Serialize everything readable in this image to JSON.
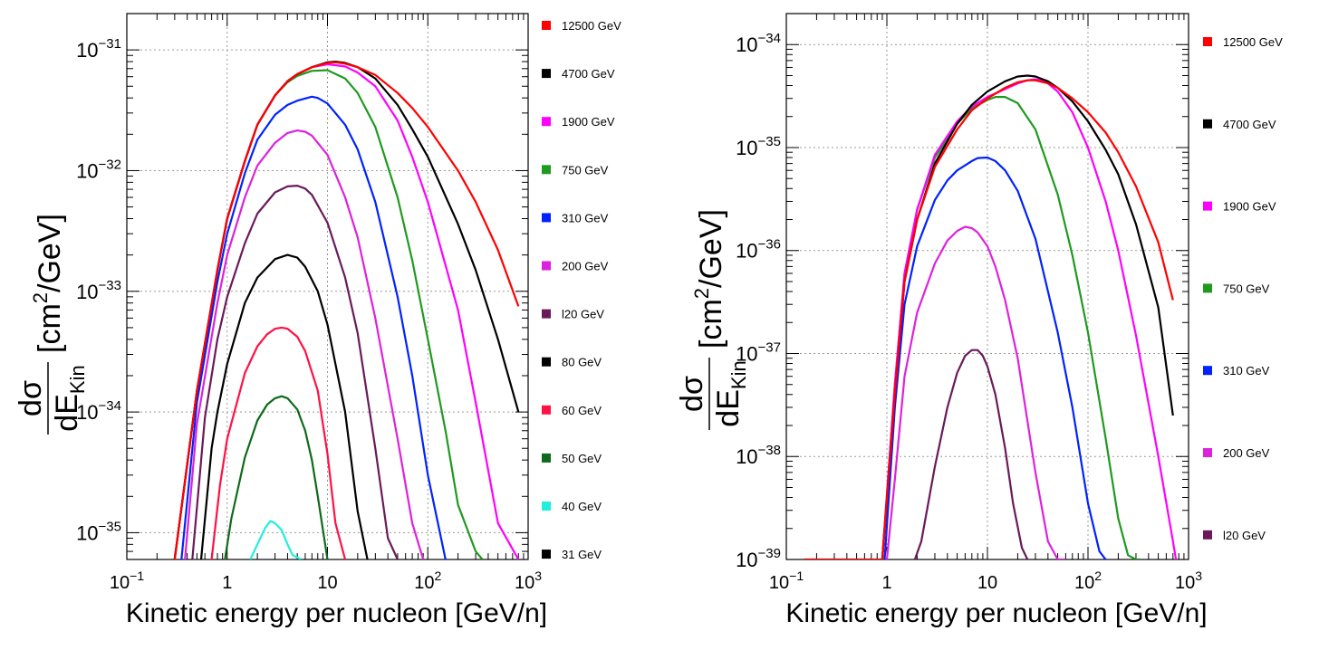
{
  "chart_data": [
    {
      "type": "line",
      "xlabel": "Kinetic energy per nucleon [GeV/n]",
      "ylabel": {
        "numerator": "dσ",
        "denominator": "dE",
        "denominator_sub": "Kin",
        "unit_prefix": "[cm",
        "unit_sup": "2",
        "unit_suffix": "/GeV]"
      },
      "x_scale": "log",
      "y_scale": "log",
      "xlim": [
        0.1,
        1000
      ],
      "ylim": [
        6e-36,
        2e-31
      ],
      "grid": true,
      "legend_placement": "right",
      "x_tick_labels": [
        {
          "base": "10",
          "exp": "−1",
          "value": 0.1
        },
        {
          "base": "1",
          "exp": "",
          "value": 1
        },
        {
          "base": "10",
          "exp": "",
          "value": 10
        },
        {
          "base": "10",
          "exp": "2",
          "value": 100
        },
        {
          "base": "10",
          "exp": "3",
          "value": 1000
        }
      ],
      "y_tick_labels": [
        {
          "base": "10",
          "exp": "−35",
          "value": 1e-35
        },
        {
          "base": "10",
          "exp": "−34",
          "value": 1e-34
        },
        {
          "base": "10",
          "exp": "−33",
          "value": 1e-33
        },
        {
          "base": "10",
          "exp": "−32",
          "value": 1e-32
        },
        {
          "base": "10",
          "exp": "−31",
          "value": 1e-31
        }
      ],
      "series": [
        {
          "name": "12500 GeV",
          "color": "#ff0000",
          "x": [
            0.3,
            0.5,
            0.8,
            1,
            1.5,
            2,
            3,
            4,
            5,
            7,
            10,
            12,
            15,
            20,
            30,
            50,
            70,
            100,
            200,
            300,
            500,
            800
          ],
          "y": [
            6e-36,
            1.5e-34,
            1.5e-33,
            4e-33,
            1.2e-32,
            2.4e-32,
            4.2e-32,
            5.5e-32,
            6.3e-32,
            7.2e-32,
            7.8e-32,
            7.9e-32,
            7.7e-32,
            7.2e-32,
            6.2e-32,
            4.4e-32,
            3.3e-32,
            2.3e-32,
            1e-32,
            5.5e-33,
            2.2e-33,
            7.5e-34
          ]
        },
        {
          "name": "4700 GeV",
          "color": "#000000",
          "x": [
            0.3,
            0.5,
            0.8,
            1,
            1.5,
            2,
            3,
            4,
            5,
            7,
            10,
            12,
            15,
            20,
            30,
            50,
            70,
            100,
            200,
            300,
            500,
            800
          ],
          "y": [
            6e-36,
            1.5e-34,
            1.5e-33,
            4e-33,
            1.2e-32,
            2.4e-32,
            4.2e-32,
            5.5e-32,
            6.3e-32,
            7.2e-32,
            7.9e-32,
            8e-32,
            7.8e-32,
            7.2e-32,
            5.8e-32,
            3.5e-32,
            2.2e-32,
            1.3e-32,
            3.6e-33,
            1.5e-33,
            4e-34,
            1e-34
          ]
        },
        {
          "name": "1900 GeV",
          "color": "#ff00ff",
          "x": [
            0.3,
            0.5,
            0.8,
            1,
            1.5,
            2,
            3,
            4,
            5,
            7,
            10,
            15,
            20,
            30,
            50,
            70,
            100,
            200,
            300,
            500,
            800
          ],
          "y": [
            6e-36,
            1.5e-34,
            1.5e-33,
            4e-33,
            1.2e-32,
            2.4e-32,
            4.2e-32,
            5.5e-32,
            6.3e-32,
            7.2e-32,
            7.6e-32,
            7.3e-32,
            6.5e-32,
            5e-32,
            2.6e-32,
            1.3e-32,
            5.5e-33,
            7e-34,
            1.2e-34,
            1.2e-35,
            6e-36
          ]
        },
        {
          "name": "750 GeV",
          "color": "#1f9a1f",
          "x": [
            0.3,
            0.5,
            0.8,
            1,
            1.5,
            2,
            3,
            4,
            5,
            7,
            10,
            15,
            20,
            30,
            50,
            70,
            100,
            150,
            200,
            300,
            350
          ],
          "y": [
            6e-36,
            1.5e-34,
            1.5e-33,
            4e-33,
            1.2e-32,
            2.4e-32,
            4.2e-32,
            5.4e-32,
            6.1e-32,
            6.7e-32,
            6.8e-32,
            5.8e-32,
            4.4e-32,
            2.3e-32,
            6e-33,
            1.8e-33,
            4e-34,
            7e-35,
            1.7e-35,
            7e-36,
            6e-36
          ]
        },
        {
          "name": "310 GeV",
          "color": "#0022ff",
          "x": [
            0.35,
            0.5,
            0.8,
            1,
            1.5,
            2,
            3,
            4,
            5,
            7,
            8,
            10,
            15,
            20,
            30,
            50,
            70,
            100,
            150
          ],
          "y": [
            6e-36,
            1.2e-34,
            1.2e-33,
            3e-33,
            9.5e-33,
            1.8e-32,
            2.9e-32,
            3.5e-32,
            3.8e-32,
            4.1e-32,
            4e-32,
            3.6e-32,
            2.4e-32,
            1.5e-32,
            5.5e-33,
            9e-34,
            2e-34,
            3e-35,
            6e-36
          ]
        },
        {
          "name": "200 GeV",
          "color": "#dd22dd",
          "x": [
            0.38,
            0.5,
            0.8,
            1,
            1.5,
            2,
            3,
            4,
            5,
            6,
            7,
            10,
            15,
            20,
            30,
            50,
            70,
            90
          ],
          "y": [
            6e-36,
            8e-35,
            8e-34,
            2e-33,
            6e-33,
            1.1e-32,
            1.7e-32,
            2.05e-32,
            2.15e-32,
            2.1e-32,
            1.95e-32,
            1.35e-32,
            6e-33,
            2.8e-33,
            6e-34,
            6e-35,
            1.2e-35,
            6e-36
          ]
        },
        {
          "name": "l20 GeV",
          "color": "#6a1a5a",
          "x": [
            0.45,
            0.6,
            0.8,
            1,
            1.5,
            2,
            3,
            4,
            5,
            6,
            7,
            10,
            15,
            20,
            30,
            40,
            50
          ],
          "y": [
            6e-36,
            9e-35,
            4e-34,
            9e-34,
            2.5e-33,
            4.4e-33,
            6.6e-33,
            7.4e-33,
            7.5e-33,
            7.1e-33,
            6.3e-33,
            3.7e-33,
            1.3e-33,
            4.5e-34,
            5e-35,
            9e-36,
            6e-36
          ]
        },
        {
          "name": "80 GeV",
          "color": "#000000",
          "x": [
            0.55,
            0.7,
            0.8,
            1,
            1.5,
            2,
            3,
            4,
            5,
            6,
            8,
            10,
            15,
            20,
            25
          ],
          "y": [
            6e-36,
            5e-35,
            1e-34,
            2.5e-34,
            8e-34,
            1.3e-33,
            1.85e-33,
            2e-33,
            1.9e-33,
            1.6e-33,
            1e-33,
            5.3e-34,
            1e-34,
            1.5e-35,
            6e-36
          ]
        },
        {
          "name": "60 GeV",
          "color": "#ff1144",
          "x": [
            0.7,
            0.85,
            1,
            1.5,
            2,
            2.5,
            3,
            3.5,
            4,
            5,
            6,
            8,
            10,
            12,
            15
          ],
          "y": [
            6e-36,
            2.5e-35,
            6e-35,
            2.1e-34,
            3.5e-34,
            4.4e-34,
            4.9e-34,
            5e-34,
            4.9e-34,
            4.2e-34,
            3.2e-34,
            1.5e-34,
            4.5e-35,
            1.2e-35,
            6e-36
          ]
        },
        {
          "name": "50 GeV",
          "color": "#0e6a1a",
          "x": [
            0.95,
            1.1,
            1.5,
            2,
            2.5,
            3,
            3.5,
            4,
            5,
            6,
            7,
            8,
            10
          ],
          "y": [
            6e-36,
            1.3e-35,
            4.2e-35,
            8.5e-35,
            1.15e-34,
            1.3e-34,
            1.35e-34,
            1.3e-34,
            1.05e-34,
            7e-35,
            4e-35,
            2e-35,
            6e-36
          ]
        },
        {
          "name": "40 GeV",
          "color": "#22eedd",
          "x": [
            1.7,
            2,
            2.4,
            2.7,
            3,
            3.5,
            4,
            4.5,
            5.5
          ],
          "y": [
            6e-36,
            8e-36,
            1.1e-35,
            1.25e-35,
            1.2e-35,
            1.05e-35,
            8e-36,
            6.5e-36,
            6e-36
          ]
        },
        {
          "name": "31 GeV",
          "color": "#000000",
          "x": [],
          "y": []
        }
      ]
    },
    {
      "type": "line",
      "xlabel": "Kinetic energy per nucleon [GeV/n]",
      "ylabel": {
        "numerator": "dσ",
        "denominator": "dE",
        "denominator_sub": "Kin",
        "unit_prefix": "[cm",
        "unit_sup": "2",
        "unit_suffix": "/GeV]"
      },
      "x_scale": "log",
      "y_scale": "log",
      "xlim": [
        0.1,
        1000
      ],
      "ylim": [
        1e-39,
        2e-34
      ],
      "grid": true,
      "legend_placement": "right",
      "x_tick_labels": [
        {
          "base": "10",
          "exp": "−1",
          "value": 0.1
        },
        {
          "base": "1",
          "exp": "",
          "value": 1
        },
        {
          "base": "10",
          "exp": "",
          "value": 10
        },
        {
          "base": "10",
          "exp": "2",
          "value": 100
        },
        {
          "base": "10",
          "exp": "3",
          "value": 1000
        }
      ],
      "y_tick_labels": [
        {
          "base": "10",
          "exp": "−39",
          "value": 1e-39
        },
        {
          "base": "10",
          "exp": "−38",
          "value": 1e-38
        },
        {
          "base": "10",
          "exp": "−37",
          "value": 1e-37
        },
        {
          "base": "10",
          "exp": "−36",
          "value": 1e-36
        },
        {
          "base": "10",
          "exp": "−35",
          "value": 1e-35
        },
        {
          "base": "10",
          "exp": "−34",
          "value": 1e-34
        }
      ],
      "series": [
        {
          "name": "12500 GeV",
          "color": "#ff0000",
          "x": [
            0.15,
            0.9,
            1.2,
            1.5,
            2,
            3,
            5,
            7,
            10,
            15,
            20,
            25,
            30,
            40,
            50,
            70,
            100,
            150,
            200,
            300,
            500,
            700
          ],
          "y": [
            1e-39,
            1e-39,
            4e-38,
            5e-37,
            2e-36,
            6.5e-36,
            1.5e-35,
            2.3e-35,
            3e-35,
            3.8e-35,
            4.3e-35,
            4.5e-35,
            4.5e-35,
            4.2e-35,
            3.8e-35,
            3e-35,
            2.2e-35,
            1.4e-35,
            9e-36,
            4.2e-36,
            1.2e-36,
            3.3e-37
          ]
        },
        {
          "name": "4700 GeV",
          "color": "#000000",
          "x": [
            0.9,
            1.2,
            1.5,
            2,
            3,
            5,
            7,
            10,
            15,
            20,
            25,
            30,
            40,
            50,
            70,
            100,
            150,
            200,
            300,
            500,
            700
          ],
          "y": [
            1e-39,
            4e-38,
            5e-37,
            2e-36,
            7e-36,
            1.7e-35,
            2.6e-35,
            3.5e-35,
            4.4e-35,
            4.9e-35,
            5e-35,
            4.9e-35,
            4.4e-35,
            3.8e-35,
            2.8e-35,
            1.8e-35,
            9.5e-36,
            5.5e-36,
            1.8e-36,
            2.8e-37,
            2.5e-38
          ]
        },
        {
          "name": "1900 GeV",
          "color": "#ff00ff",
          "x": [
            0.9,
            1.2,
            1.5,
            2,
            3,
            5,
            7,
            10,
            15,
            20,
            25,
            30,
            35,
            40,
            50,
            70,
            100,
            150,
            200,
            300,
            500,
            700,
            750
          ],
          "y": [
            1e-39,
            5e-38,
            6e-37,
            2.5e-36,
            8.5e-36,
            1.8e-35,
            2.5e-35,
            3.1e-35,
            3.7e-35,
            4.2e-35,
            4.5e-35,
            4.6e-35,
            4.5e-35,
            4.2e-35,
            3.5e-35,
            2.2e-35,
            1e-35,
            3e-36,
            1e-36,
            1.5e-37,
            1e-38,
            1.5e-39,
            1e-39
          ]
        },
        {
          "name": "750 GeV",
          "color": "#1f9a1f",
          "x": [
            0.9,
            1.2,
            1.5,
            2,
            3,
            5,
            7,
            10,
            12,
            15,
            20,
            30,
            50,
            70,
            100,
            150,
            200,
            250,
            300,
            330
          ],
          "y": [
            1e-39,
            5e-38,
            6e-37,
            2.5e-36,
            8e-36,
            1.7e-35,
            2.4e-35,
            2.9e-35,
            3.1e-35,
            3.1e-35,
            2.7e-35,
            1.5e-35,
            3.5e-36,
            9e-37,
            1.6e-37,
            1.5e-38,
            2.5e-39,
            1.1e-39,
            1e-39,
            1e-39
          ]
        },
        {
          "name": "310 GeV",
          "color": "#0022ff",
          "x": [
            0.95,
            1.2,
            1.5,
            2,
            3,
            4,
            5,
            7,
            8,
            10,
            12,
            15,
            20,
            30,
            50,
            70,
            100,
            130,
            150
          ],
          "y": [
            1e-39,
            3e-38,
            3e-37,
            1.1e-36,
            3.1e-36,
            4.8e-36,
            6e-36,
            7.4e-36,
            7.9e-36,
            8e-36,
            7.4e-36,
            6e-36,
            3.8e-36,
            1.3e-36,
            1.6e-37,
            3e-38,
            3.5e-39,
            1.2e-39,
            1e-39
          ]
        },
        {
          "name": "200 GeV",
          "color": "#dd22dd",
          "x": [
            1.0,
            1.2,
            1.5,
            2,
            3,
            4,
            5,
            6,
            7,
            8,
            10,
            12,
            15,
            20,
            30,
            40,
            50,
            55,
            60
          ],
          "y": [
            1e-39,
            6e-39,
            6e-38,
            2.5e-37,
            7.5e-37,
            1.25e-36,
            1.55e-36,
            1.7e-36,
            1.65e-36,
            1.5e-36,
            1.1e-36,
            7e-37,
            3.3e-37,
            9e-38,
            7e-39,
            1.5e-39,
            1e-39,
            1e-39,
            1e-39
          ]
        },
        {
          "name": "l20 GeV",
          "color": "#6a1a5a",
          "x": [
            1.9,
            2.2,
            3,
            4,
            5,
            6,
            7,
            8,
            9,
            10,
            12,
            15,
            18,
            22,
            25
          ],
          "y": [
            1e-39,
            1.5e-39,
            8e-39,
            3e-38,
            6.5e-38,
            9.5e-38,
            1.08e-37,
            1.08e-37,
            9.5e-38,
            7.5e-38,
            4e-38,
            1.2e-38,
            3.5e-39,
            1.3e-39,
            1e-39
          ]
        }
      ]
    }
  ]
}
